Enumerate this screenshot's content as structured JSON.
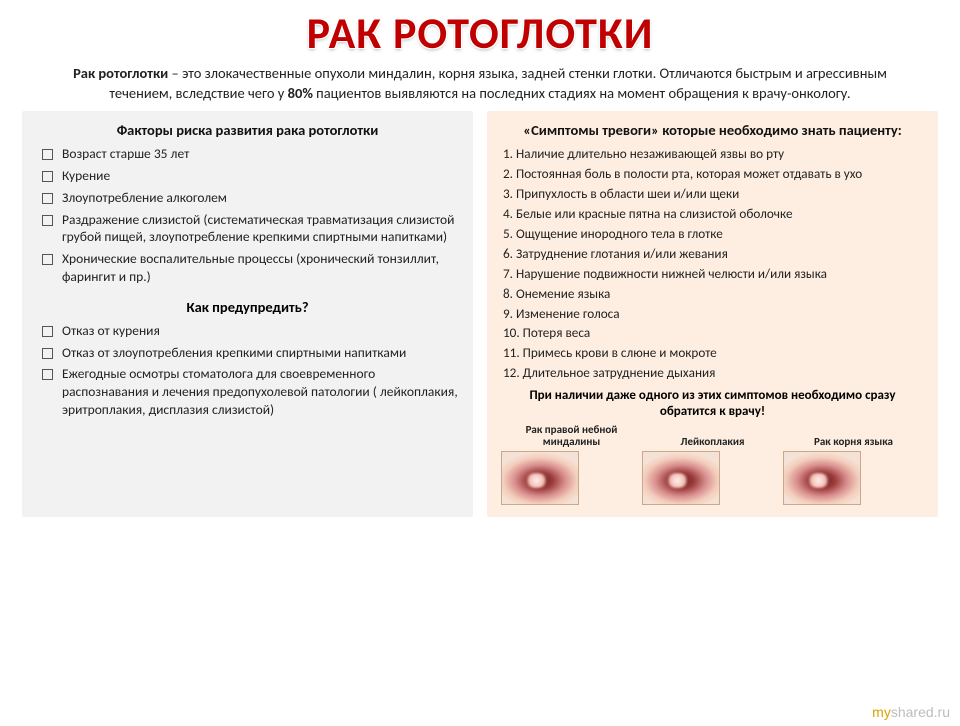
{
  "title": "РАК РОТОГЛОТКИ",
  "intro_pre": "Рак ротоглотки",
  "intro_body": " – это злокачественные опухоли миндалин, корня языка, задней стенки глотки. Отличаются быстрым и агрессивным течением, вследствие чего у ",
  "intro_pct": "80%",
  "intro_tail": " пациентов выявляются на последних стадиях на момент обращения к врачу-онкологу.",
  "left": {
    "heading": "Факторы риска развития рака ротоглотки",
    "risks": [
      "Возраст старше 35 лет",
      "Курение",
      "Злоупотребление алкоголем",
      "Раздражение слизистой (систематическая травматизация слизистой грубой пищей, злоупотребление крепкими спиртными напитками)",
      "Хронические воспалительные процессы (хронический тонзиллит, фарингит и пр.)"
    ],
    "prevent_heading": "Как предупредить?",
    "prevent": [
      "Отказ от курения",
      "Отказ от злоупотребления крепкими спиртными напитками",
      "Ежегодные осмотры стоматолога для своевременного распознавания и лечения предопухолевой патологии ( лейкоплакия, эритроплакия, дисплазия слизистой)"
    ]
  },
  "right": {
    "heading": "«Симптомы тревоги» которые необходимо знать пациенту:",
    "symptoms": [
      "1. Наличие длительно незаживающей язвы во рту",
      "2. Постоянная боль в полости рта, которая может отдавать в ухо",
      "3. Припухлость в области шеи и/или щеки",
      "4. Белые или красные пятна на слизистой оболочке",
      "5. Ощущение инородного тела в глотке",
      "6. Затруднение глотания и/или жевания",
      "7. Нарушение подвижности нижней челюсти и/или языка",
      "8. Онемение языка",
      "9. Изменение голоса",
      "10. Потеря веса",
      "11. Примесь крови в слюне и мокроте",
      "12. Длительное затруднение дыхания"
    ],
    "footer": "При наличии даже одного из этих симптомов необходимо сразу обратится к врачу!",
    "images": [
      {
        "caption": "Рак правой небной миндалины"
      },
      {
        "caption": "Лейкоплакия"
      },
      {
        "caption": "Рак корня языка"
      }
    ]
  },
  "watermark_my": "my",
  "watermark_rest": "shared.ru",
  "colors": {
    "title": "#c00000",
    "panel_left_bg": "#f2f2f2",
    "panel_right_bg": "#fdeee1",
    "text": "#222222"
  }
}
